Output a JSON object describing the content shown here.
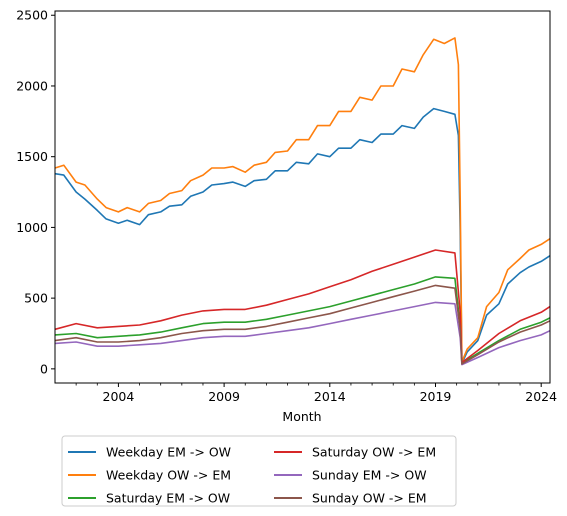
{
  "chart_data": {
    "type": "line",
    "title": "",
    "xlabel": "Month",
    "ylabel": "",
    "x_range": [
      "2001-01",
      "2024-06"
    ],
    "ylim": [
      -100,
      2530
    ],
    "yticks": [
      0,
      500,
      1000,
      1500,
      2000,
      2500
    ],
    "xticks": [
      {
        "date": "2004-01",
        "label": "2004"
      },
      {
        "date": "2009-01",
        "label": "2009"
      },
      {
        "date": "2014-01",
        "label": "2014"
      },
      {
        "date": "2019-01",
        "label": "2019"
      },
      {
        "date": "2024-01",
        "label": "2024"
      }
    ],
    "legend": {
      "placement": "below",
      "columns": 2
    },
    "series": [
      {
        "name": "Weekday EM -> OW",
        "color": "#1f77b4",
        "points": [
          [
            "2001-01",
            1380
          ],
          [
            "2001-06",
            1370
          ],
          [
            "2002-01",
            1250
          ],
          [
            "2002-06",
            1200
          ],
          [
            "2003-01",
            1120
          ],
          [
            "2003-06",
            1060
          ],
          [
            "2004-01",
            1030
          ],
          [
            "2004-06",
            1050
          ],
          [
            "2005-01",
            1020
          ],
          [
            "2005-06",
            1090
          ],
          [
            "2006-01",
            1110
          ],
          [
            "2006-06",
            1150
          ],
          [
            "2007-01",
            1160
          ],
          [
            "2007-06",
            1220
          ],
          [
            "2008-01",
            1250
          ],
          [
            "2008-06",
            1300
          ],
          [
            "2009-01",
            1310
          ],
          [
            "2009-06",
            1320
          ],
          [
            "2010-01",
            1290
          ],
          [
            "2010-06",
            1330
          ],
          [
            "2011-01",
            1340
          ],
          [
            "2011-06",
            1400
          ],
          [
            "2012-01",
            1400
          ],
          [
            "2012-06",
            1460
          ],
          [
            "2013-01",
            1450
          ],
          [
            "2013-06",
            1520
          ],
          [
            "2014-01",
            1500
          ],
          [
            "2014-06",
            1560
          ],
          [
            "2015-01",
            1560
          ],
          [
            "2015-06",
            1620
          ],
          [
            "2016-01",
            1600
          ],
          [
            "2016-06",
            1660
          ],
          [
            "2017-01",
            1660
          ],
          [
            "2017-06",
            1720
          ],
          [
            "2018-01",
            1700
          ],
          [
            "2018-06",
            1780
          ],
          [
            "2018-12",
            1840
          ],
          [
            "2019-06",
            1820
          ],
          [
            "2019-12",
            1800
          ],
          [
            "2020-02",
            1650
          ],
          [
            "2020-03",
            980
          ],
          [
            "2020-04",
            40
          ],
          [
            "2020-07",
            120
          ],
          [
            "2021-01",
            200
          ],
          [
            "2021-06",
            380
          ],
          [
            "2022-01",
            460
          ],
          [
            "2022-06",
            600
          ],
          [
            "2023-01",
            680
          ],
          [
            "2023-06",
            720
          ],
          [
            "2024-01",
            760
          ],
          [
            "2024-06",
            800
          ]
        ]
      },
      {
        "name": "Weekday OW -> EM",
        "color": "#ff7f0e",
        "points": [
          [
            "2001-01",
            1420
          ],
          [
            "2001-06",
            1440
          ],
          [
            "2002-01",
            1320
          ],
          [
            "2002-06",
            1300
          ],
          [
            "2003-01",
            1200
          ],
          [
            "2003-06",
            1140
          ],
          [
            "2004-01",
            1110
          ],
          [
            "2004-06",
            1140
          ],
          [
            "2005-01",
            1110
          ],
          [
            "2005-06",
            1170
          ],
          [
            "2006-01",
            1190
          ],
          [
            "2006-06",
            1240
          ],
          [
            "2007-01",
            1260
          ],
          [
            "2007-06",
            1330
          ],
          [
            "2008-01",
            1370
          ],
          [
            "2008-06",
            1420
          ],
          [
            "2009-01",
            1420
          ],
          [
            "2009-06",
            1430
          ],
          [
            "2010-01",
            1390
          ],
          [
            "2010-06",
            1440
          ],
          [
            "2011-01",
            1460
          ],
          [
            "2011-06",
            1530
          ],
          [
            "2012-01",
            1540
          ],
          [
            "2012-06",
            1620
          ],
          [
            "2013-01",
            1620
          ],
          [
            "2013-06",
            1720
          ],
          [
            "2014-01",
            1720
          ],
          [
            "2014-06",
            1820
          ],
          [
            "2015-01",
            1820
          ],
          [
            "2015-06",
            1920
          ],
          [
            "2016-01",
            1900
          ],
          [
            "2016-06",
            2000
          ],
          [
            "2017-01",
            2000
          ],
          [
            "2017-06",
            2120
          ],
          [
            "2018-01",
            2100
          ],
          [
            "2018-06",
            2220
          ],
          [
            "2018-12",
            2330
          ],
          [
            "2019-06",
            2300
          ],
          [
            "2019-12",
            2340
          ],
          [
            "2020-02",
            2150
          ],
          [
            "2020-03",
            1200
          ],
          [
            "2020-04",
            50
          ],
          [
            "2020-07",
            140
          ],
          [
            "2021-01",
            220
          ],
          [
            "2021-06",
            440
          ],
          [
            "2022-01",
            540
          ],
          [
            "2022-06",
            700
          ],
          [
            "2023-01",
            780
          ],
          [
            "2023-06",
            840
          ],
          [
            "2024-01",
            880
          ],
          [
            "2024-06",
            920
          ]
        ]
      },
      {
        "name": "Saturday EM -> OW",
        "color": "#2ca02c",
        "points": [
          [
            "2001-01",
            240
          ],
          [
            "2002-01",
            250
          ],
          [
            "2003-01",
            220
          ],
          [
            "2004-01",
            230
          ],
          [
            "2005-01",
            240
          ],
          [
            "2006-01",
            260
          ],
          [
            "2007-01",
            290
          ],
          [
            "2008-01",
            320
          ],
          [
            "2009-01",
            330
          ],
          [
            "2010-01",
            330
          ],
          [
            "2011-01",
            350
          ],
          [
            "2012-01",
            380
          ],
          [
            "2013-01",
            410
          ],
          [
            "2014-01",
            440
          ],
          [
            "2015-01",
            480
          ],
          [
            "2016-01",
            520
          ],
          [
            "2017-01",
            560
          ],
          [
            "2018-01",
            600
          ],
          [
            "2019-01",
            650
          ],
          [
            "2019-12",
            640
          ],
          [
            "2020-03",
            300
          ],
          [
            "2020-04",
            40
          ],
          [
            "2021-01",
            110
          ],
          [
            "2022-01",
            200
          ],
          [
            "2023-01",
            280
          ],
          [
            "2024-01",
            330
          ],
          [
            "2024-06",
            360
          ]
        ]
      },
      {
        "name": "Saturday OW -> EM",
        "color": "#d62728",
        "points": [
          [
            "2001-01",
            280
          ],
          [
            "2002-01",
            320
          ],
          [
            "2003-01",
            290
          ],
          [
            "2004-01",
            300
          ],
          [
            "2005-01",
            310
          ],
          [
            "2006-01",
            340
          ],
          [
            "2007-01",
            380
          ],
          [
            "2008-01",
            410
          ],
          [
            "2009-01",
            420
          ],
          [
            "2010-01",
            420
          ],
          [
            "2011-01",
            450
          ],
          [
            "2012-01",
            490
          ],
          [
            "2013-01",
            530
          ],
          [
            "2014-01",
            580
          ],
          [
            "2015-01",
            630
          ],
          [
            "2016-01",
            690
          ],
          [
            "2017-01",
            740
          ],
          [
            "2018-01",
            790
          ],
          [
            "2019-01",
            840
          ],
          [
            "2019-12",
            820
          ],
          [
            "2020-03",
            400
          ],
          [
            "2020-04",
            45
          ],
          [
            "2021-01",
            130
          ],
          [
            "2022-01",
            250
          ],
          [
            "2023-01",
            340
          ],
          [
            "2024-01",
            400
          ],
          [
            "2024-06",
            440
          ]
        ]
      },
      {
        "name": "Sunday EM -> OW",
        "color": "#9467bd",
        "points": [
          [
            "2001-01",
            180
          ],
          [
            "2002-01",
            190
          ],
          [
            "2003-01",
            160
          ],
          [
            "2004-01",
            160
          ],
          [
            "2005-01",
            170
          ],
          [
            "2006-01",
            180
          ],
          [
            "2007-01",
            200
          ],
          [
            "2008-01",
            220
          ],
          [
            "2009-01",
            230
          ],
          [
            "2010-01",
            230
          ],
          [
            "2011-01",
            250
          ],
          [
            "2012-01",
            270
          ],
          [
            "2013-01",
            290
          ],
          [
            "2014-01",
            320
          ],
          [
            "2015-01",
            350
          ],
          [
            "2016-01",
            380
          ],
          [
            "2017-01",
            410
          ],
          [
            "2018-01",
            440
          ],
          [
            "2019-01",
            470
          ],
          [
            "2019-12",
            460
          ],
          [
            "2020-03",
            220
          ],
          [
            "2020-04",
            30
          ],
          [
            "2021-01",
            80
          ],
          [
            "2022-01",
            150
          ],
          [
            "2023-01",
            200
          ],
          [
            "2024-01",
            240
          ],
          [
            "2024-06",
            270
          ]
        ]
      },
      {
        "name": "Sunday OW -> EM",
        "color": "#8c564b",
        "points": [
          [
            "2001-01",
            200
          ],
          [
            "2002-01",
            220
          ],
          [
            "2003-01",
            190
          ],
          [
            "2004-01",
            190
          ],
          [
            "2005-01",
            200
          ],
          [
            "2006-01",
            220
          ],
          [
            "2007-01",
            250
          ],
          [
            "2008-01",
            270
          ],
          [
            "2009-01",
            280
          ],
          [
            "2010-01",
            280
          ],
          [
            "2011-01",
            300
          ],
          [
            "2012-01",
            330
          ],
          [
            "2013-01",
            360
          ],
          [
            "2014-01",
            390
          ],
          [
            "2015-01",
            430
          ],
          [
            "2016-01",
            470
          ],
          [
            "2017-01",
            510
          ],
          [
            "2018-01",
            550
          ],
          [
            "2019-01",
            590
          ],
          [
            "2019-12",
            570
          ],
          [
            "2020-03",
            280
          ],
          [
            "2020-04",
            35
          ],
          [
            "2021-01",
            100
          ],
          [
            "2022-01",
            190
          ],
          [
            "2023-01",
            260
          ],
          [
            "2024-01",
            310
          ],
          [
            "2024-06",
            340
          ]
        ]
      }
    ]
  }
}
